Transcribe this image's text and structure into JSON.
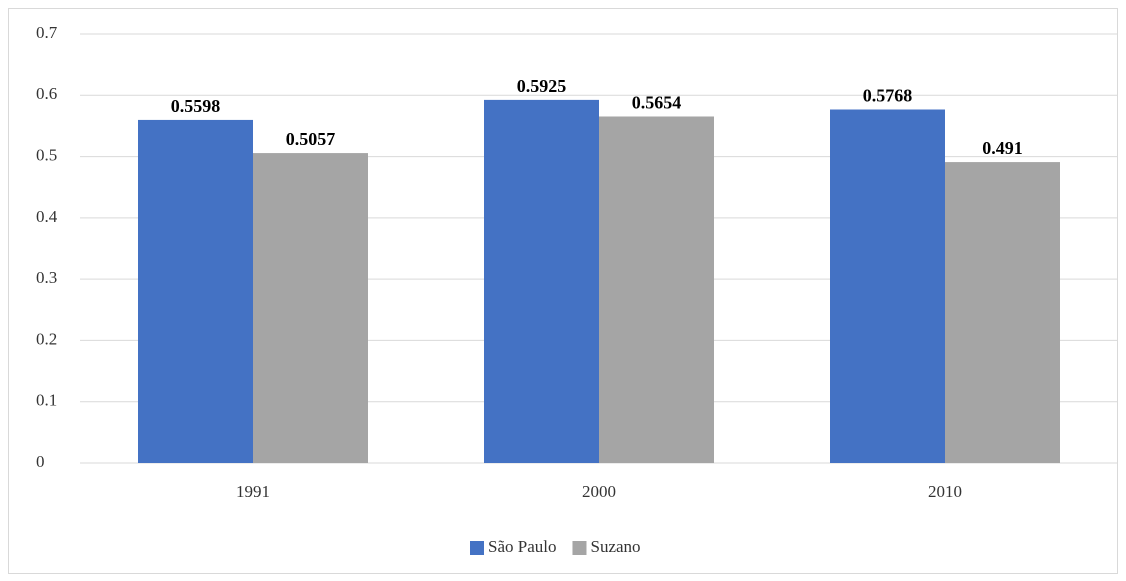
{
  "chart_data": {
    "type": "bar",
    "categories": [
      "1991",
      "2000",
      "2010"
    ],
    "series": [
      {
        "name": "São Paulo",
        "color": "#4472c4",
        "values": [
          0.5598,
          0.5925,
          0.5768
        ]
      },
      {
        "name": "Suzano",
        "color": "#a5a5a5",
        "values": [
          0.5057,
          0.5654,
          0.491
        ]
      }
    ],
    "ylim": [
      0,
      0.7
    ],
    "yticks": [
      0,
      0.1,
      0.2,
      0.3,
      0.4,
      0.5,
      0.6,
      0.7
    ],
    "grid": true,
    "legend": "bottom"
  }
}
